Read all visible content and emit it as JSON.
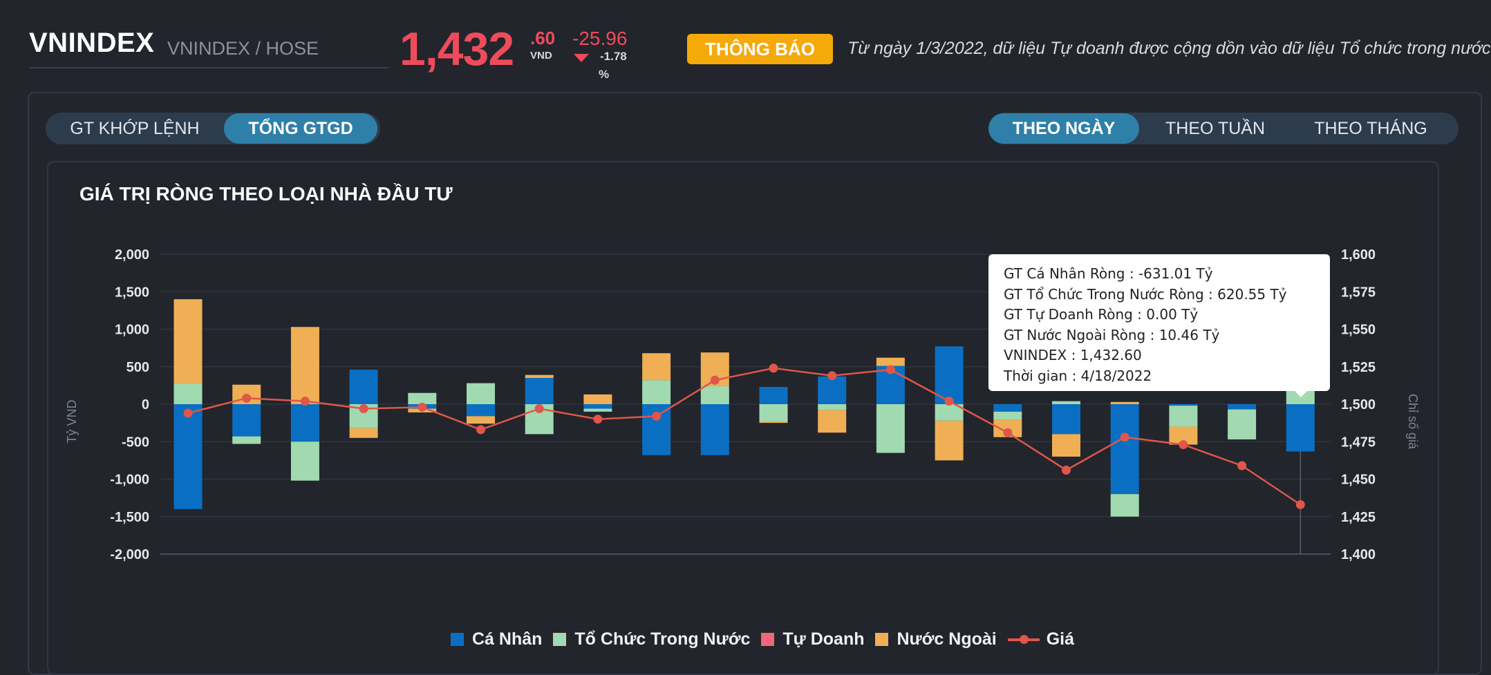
{
  "header": {
    "symbol": "VNINDEX",
    "exchange": "VNINDEX / HOSE",
    "price_main": "1,432",
    "price_decimal": ".60",
    "price_unit": "VND",
    "change_abs": "-25.96",
    "change_pct": "-1.78",
    "change_pct_sign": "%",
    "notice_badge": "THÔNG BÁO",
    "notice_text": "Từ ngày 1/3/2022, dữ liệu Tự doanh được cộng dồn vào dữ liệu Tổ chức trong nước"
  },
  "tabs_left": [
    {
      "label": "GT KHỚP LỆNH",
      "active": false
    },
    {
      "label": "TỔNG GTGD",
      "active": true
    }
  ],
  "tabs_right": [
    {
      "label": "THEO NGÀY",
      "active": true
    },
    {
      "label": "THEO TUẦN",
      "active": false
    },
    {
      "label": "THEO THÁNG",
      "active": false
    }
  ],
  "chart_title": "GIÁ TRỊ RÒNG THEO LOẠI NHÀ ĐẦU TƯ",
  "tooltip": {
    "line1": "GT Cá Nhân Ròng  : -631.01 Tỷ",
    "line2": "GT Tổ Chức Trong Nước Ròng : 620.55 Tỷ",
    "line3": "GT Tự Doanh Ròng : 0.00 Tỷ",
    "line4": "GT Nước Ngoài Ròng : 10.46 Tỷ",
    "line5": "VNINDEX : 1,432.60",
    "line6": "Thời gian : 4/18/2022"
  },
  "legend": {
    "ca_nhan": "Cá Nhân",
    "to_chuc": "Tổ Chức Trong Nước",
    "tu_doanh": "Tự Doanh",
    "nuoc_ngoai": "Nước Ngoài",
    "gia": "Giá"
  },
  "colors": {
    "ca_nhan": "#0a6fc2",
    "to_chuc": "#a1d9b0",
    "tu_doanh": "#f2657a",
    "nuoc_ngoai": "#f0ae55",
    "gia": "#e0564a",
    "price_red": "#ef4b5b",
    "notice": "#f6a90b",
    "tab_active": "#2f80a9"
  },
  "chart_data": {
    "type": "bar",
    "stacked": true,
    "y_left": {
      "label": "Tỷ VND",
      "ticks": [
        "2,000",
        "1,500",
        "1,000",
        "500",
        "0",
        "-500",
        "-1,000",
        "-1,500",
        "-2,000"
      ],
      "range": [
        -2000,
        2000
      ]
    },
    "y_right": {
      "label": "Chỉ số giá",
      "ticks": [
        "1,600",
        "1,575",
        "1,550",
        "1,525",
        "1,500",
        "1,475",
        "1,450",
        "1,425",
        "1,400"
      ],
      "range": [
        1400,
        1600
      ]
    },
    "series": [
      {
        "name": "Cá Nhân",
        "values": [
          -1400,
          -430,
          -500,
          460,
          -60,
          -160,
          350,
          -60,
          -680,
          -680,
          230,
          370,
          510,
          770,
          -100,
          -400,
          -1200,
          -20,
          -70,
          -631
        ]
      },
      {
        "name": "Tổ Chức Trong Nước",
        "values": [
          280,
          -100,
          -520,
          -320,
          150,
          280,
          -400,
          -40,
          320,
          240,
          -230,
          -80,
          -650,
          -220,
          -110,
          40,
          -300,
          -280,
          -400,
          621
        ]
      },
      {
        "name": "Tự Doanh",
        "values": [
          0,
          0,
          0,
          0,
          0,
          0,
          0,
          0,
          0,
          0,
          0,
          0,
          0,
          0,
          0,
          0,
          0,
          0,
          0,
          0
        ]
      },
      {
        "name": "Nước Ngoài",
        "values": [
          1120,
          260,
          1030,
          -130,
          -50,
          -100,
          40,
          130,
          360,
          450,
          -20,
          -300,
          110,
          -530,
          -230,
          -300,
          30,
          -240,
          0,
          10
        ]
      }
    ],
    "line": {
      "name": "Giá",
      "values": [
        1494,
        1504,
        1502,
        1497,
        1498,
        1483,
        1497,
        1490,
        1492,
        1516,
        1524,
        1519,
        1523,
        1502,
        1481,
        1456,
        1478,
        1473,
        1459,
        1433
      ]
    },
    "grid": true,
    "legend_position": "bottom"
  }
}
